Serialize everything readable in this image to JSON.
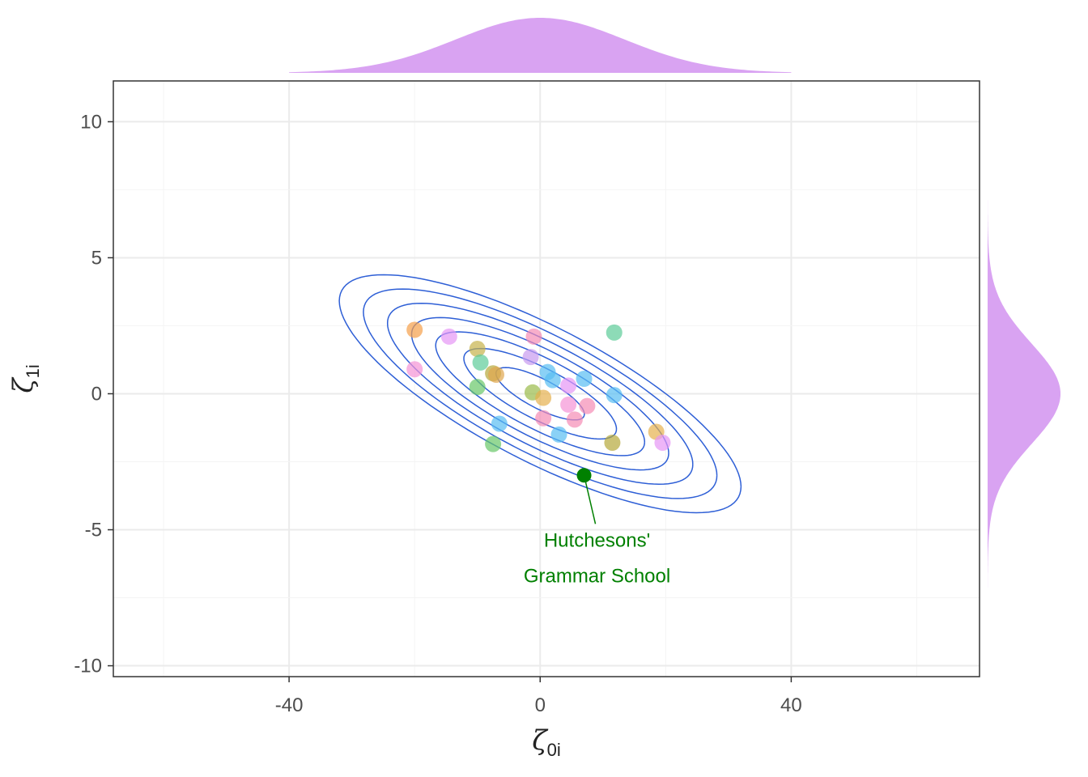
{
  "chart_data": {
    "type": "scatter",
    "xlim": [
      -68,
      70
    ],
    "ylim": [
      -10.4,
      11.5
    ],
    "x_ticks": [
      -40,
      0,
      40
    ],
    "x_tick_labels": [
      "-40",
      "0",
      "40"
    ],
    "y_ticks": [
      -10,
      -5,
      0,
      5,
      10
    ],
    "y_tick_labels": [
      "-10",
      "-5",
      "0",
      "5",
      "10"
    ],
    "xlabel": {
      "main": "ζ",
      "sub": "0i"
    },
    "ylabel": {
      "main": "ζ",
      "sub": "1i"
    },
    "grid": true,
    "marginal_color": "#d9a3f2",
    "contour_color": "#2e5fd6",
    "density": {
      "center": [
        0,
        0
      ],
      "sd_x": 12.8,
      "sd_y": 1.75,
      "rho": -0.78,
      "levels_r": [
        0.55,
        0.95,
        1.3,
        1.6,
        1.9,
        2.2,
        2.5
      ]
    },
    "points": [
      {
        "x": -20.0,
        "y": 2.35,
        "color": "#f5a04a"
      },
      {
        "x": -20.0,
        "y": 0.9,
        "color": "#f593d6"
      },
      {
        "x": -14.5,
        "y": 2.1,
        "color": "#e596f5"
      },
      {
        "x": -1.0,
        "y": 2.1,
        "color": "#f58bb5"
      },
      {
        "x": -10.0,
        "y": 1.65,
        "color": "#c6b24a"
      },
      {
        "x": -9.5,
        "y": 1.15,
        "color": "#5ccc99"
      },
      {
        "x": -1.5,
        "y": 1.35,
        "color": "#c79af0"
      },
      {
        "x": 11.8,
        "y": 2.25,
        "color": "#5ccc99"
      },
      {
        "x": -7.5,
        "y": 0.75,
        "color": "#b5a83a"
      },
      {
        "x": -7.0,
        "y": 0.7,
        "color": "#e0a64f"
      },
      {
        "x": 1.2,
        "y": 0.8,
        "color": "#58bdf2"
      },
      {
        "x": 2.0,
        "y": 0.5,
        "color": "#58bdf2"
      },
      {
        "x": 7.0,
        "y": 0.55,
        "color": "#58bdf2"
      },
      {
        "x": 4.5,
        "y": 0.3,
        "color": "#e596f5"
      },
      {
        "x": -10.0,
        "y": 0.25,
        "color": "#68c768"
      },
      {
        "x": -1.2,
        "y": 0.05,
        "color": "#9aba4a"
      },
      {
        "x": 0.5,
        "y": -0.15,
        "color": "#e6b04f"
      },
      {
        "x": 11.8,
        "y": -0.05,
        "color": "#58bdf2"
      },
      {
        "x": 4.5,
        "y": -0.4,
        "color": "#f593d6"
      },
      {
        "x": 7.5,
        "y": -0.45,
        "color": "#f58bb5"
      },
      {
        "x": 0.5,
        "y": -0.9,
        "color": "#f58bb5"
      },
      {
        "x": 5.5,
        "y": -0.95,
        "color": "#f58bb5"
      },
      {
        "x": -6.5,
        "y": -1.1,
        "color": "#58bdf2"
      },
      {
        "x": 3.0,
        "y": -1.5,
        "color": "#58bdf2"
      },
      {
        "x": 18.5,
        "y": -1.4,
        "color": "#e6b04f"
      },
      {
        "x": -7.5,
        "y": -1.85,
        "color": "#68c768"
      },
      {
        "x": 11.5,
        "y": -1.8,
        "color": "#b5a83a"
      },
      {
        "x": 19.5,
        "y": -1.8,
        "color": "#e596f5"
      }
    ],
    "highlight": {
      "x": 7.0,
      "y": -3.0,
      "color": "#008000",
      "label_lines": [
        "Hutchesons'",
        "Grammar School"
      ]
    }
  }
}
